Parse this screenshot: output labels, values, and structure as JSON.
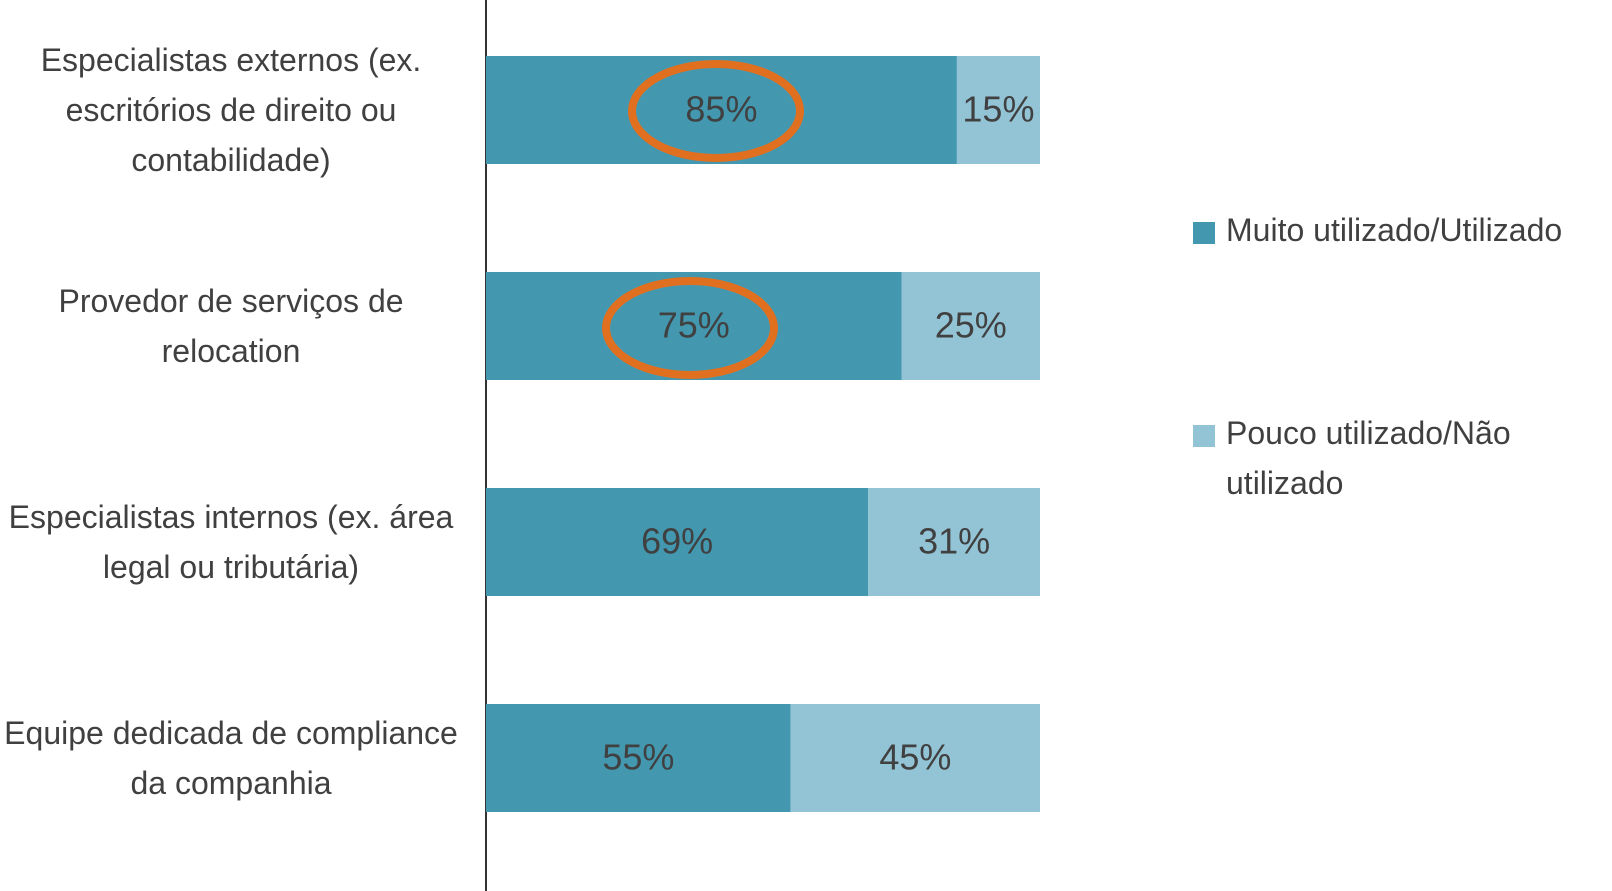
{
  "chart_data": {
    "type": "bar",
    "orientation": "horizontal",
    "stacked": true,
    "categories": [
      "Especialistas externos (ex. escritórios de direito ou contabilidade)",
      "Provedor de serviços de relocation",
      "Especialistas internos (ex. área legal ou tributária)",
      "Equipe dedicada de compliance da companhia"
    ],
    "series": [
      {
        "name": "Muito utilizado/Utilizado",
        "color": "#4398b0",
        "values": [
          85,
          75,
          69,
          55
        ],
        "value_labels": [
          "85%",
          "75%",
          "69%",
          "55%"
        ]
      },
      {
        "name": "Pouco utilizado/Não utilizado",
        "color": "#93c4d6",
        "values": [
          15,
          25,
          31,
          45
        ],
        "value_labels": [
          "15%",
          "25%",
          "31%",
          "45%"
        ]
      }
    ],
    "xlim": [
      0,
      100
    ],
    "legend": "right"
  }
}
